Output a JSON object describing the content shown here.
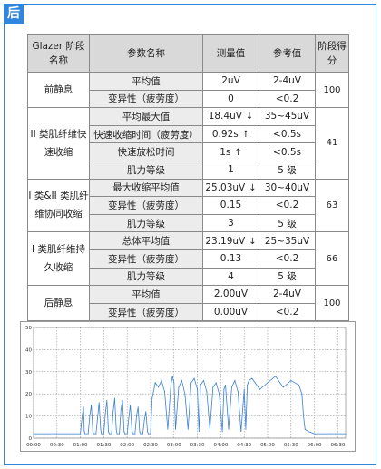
{
  "header": {
    "tag": "后"
  },
  "table": {
    "headers": [
      "Glazer 阶段名称",
      "参数名称",
      "测量值",
      "参考值",
      "阶段得分"
    ],
    "groups": [
      {
        "stage": "前静息",
        "score": "100",
        "rows": [
          {
            "param": "平均值",
            "measured": "2uV",
            "arrow": "",
            "reference": "2-4uV"
          },
          {
            "param": "变异性（疲劳度）",
            "measured": "0",
            "arrow": "",
            "reference": "<0.2"
          }
        ]
      },
      {
        "stage": "II 类肌纤维快速收缩",
        "score": "41",
        "rows": [
          {
            "param": "平均最大值",
            "measured": "18.4uV",
            "arrow": "↓",
            "reference": "35~45uV"
          },
          {
            "param": "快速收缩时间（疲劳度）",
            "measured": "0.92s",
            "arrow": "↑",
            "reference": "<0.5s"
          },
          {
            "param": "快速放松时间",
            "measured": "1s",
            "arrow": "↑",
            "reference": "<0.5s"
          },
          {
            "param": "肌力等级",
            "measured": "1",
            "arrow": "",
            "reference": "5 级"
          }
        ]
      },
      {
        "stage": "I 类&II 类肌纤维协同收缩",
        "score": "63",
        "rows": [
          {
            "param": "最大收缩平均值",
            "measured": "25.03uV",
            "arrow": "↓",
            "reference": "30~40uV"
          },
          {
            "param": "变异性（疲劳度）",
            "measured": "0.15",
            "arrow": "",
            "reference": "<0.2"
          },
          {
            "param": "肌力等级",
            "measured": "3",
            "arrow": "",
            "reference": "5 级"
          }
        ]
      },
      {
        "stage": "I 类肌纤维持久收缩",
        "score": "66",
        "rows": [
          {
            "param": "总体平均值",
            "measured": "23.19uV",
            "arrow": "↓",
            "reference": "25~35uV"
          },
          {
            "param": "变异性（疲劳度）",
            "measured": "0.13",
            "arrow": "",
            "reference": "<0.2"
          },
          {
            "param": "肌力等级",
            "measured": "4",
            "arrow": "",
            "reference": "5 级"
          }
        ]
      },
      {
        "stage": "后静息",
        "score": "100",
        "rows": [
          {
            "param": "平均值",
            "measured": "2.00uV",
            "arrow": "",
            "reference": "2-4uV"
          },
          {
            "param": "变异性（疲劳度）",
            "measured": "0.00uV",
            "arrow": "",
            "reference": "<0.2"
          }
        ]
      }
    ]
  },
  "chart_data": {
    "type": "line",
    "title": "",
    "xlabel": "",
    "ylabel": "",
    "ylim": [
      0,
      50
    ],
    "yticks": [
      "0",
      "10",
      "20",
      "30",
      "40",
      "50"
    ],
    "xticks": [
      "00:00",
      "00:30",
      "01:00",
      "01:30",
      "02:00",
      "02:30",
      "03:00",
      "03:30",
      "04:00",
      "04:30",
      "05:00",
      "05:30",
      "06:00",
      "06:30"
    ],
    "xlim_seconds": [
      0,
      400
    ],
    "grid": true,
    "series_color": "#3a7fd5",
    "series": [
      {
        "x": [
          0,
          30,
          60,
          62,
          64,
          65,
          66,
          70,
          72,
          74,
          76,
          77,
          80,
          82,
          84,
          86,
          87,
          90,
          92,
          94,
          96,
          97,
          100,
          102,
          104,
          106,
          107,
          110,
          112,
          114,
          116,
          117,
          120,
          122,
          124,
          126,
          127,
          130,
          132,
          134,
          136,
          137,
          140,
          142,
          144,
          146,
          147,
          150,
          152,
          156,
          160,
          164,
          168,
          172,
          176,
          178,
          180,
          182,
          186,
          190,
          194,
          198,
          202,
          206,
          210,
          212,
          214,
          218,
          222,
          226,
          230,
          234,
          238,
          242,
          244,
          246,
          250,
          254,
          258,
          262,
          266,
          270,
          272,
          274,
          276,
          280,
          290,
          300,
          310,
          320,
          330,
          340,
          344,
          346,
          348,
          352,
          360,
          380,
          400
        ],
        "y": [
          2,
          2,
          2,
          9,
          14,
          3,
          2,
          2,
          10,
          15,
          3,
          2,
          2,
          9,
          16,
          4,
          2,
          2,
          11,
          17,
          3,
          2,
          2,
          12,
          18,
          4,
          2,
          2,
          13,
          17,
          3,
          2,
          2,
          9,
          15,
          4,
          2,
          2,
          10,
          14,
          3,
          2,
          2,
          8,
          12,
          3,
          2,
          2,
          18,
          25,
          23,
          26,
          21,
          4,
          24,
          28,
          25,
          4,
          23,
          26,
          20,
          4,
          25,
          27,
          22,
          3,
          24,
          26,
          21,
          4,
          23,
          25,
          20,
          3,
          22,
          24,
          4,
          23,
          26,
          21,
          3,
          22,
          4,
          24,
          26,
          27,
          22,
          25,
          28,
          23,
          26,
          24,
          20,
          10,
          4,
          3,
          2,
          2,
          2
        ]
      }
    ]
  }
}
